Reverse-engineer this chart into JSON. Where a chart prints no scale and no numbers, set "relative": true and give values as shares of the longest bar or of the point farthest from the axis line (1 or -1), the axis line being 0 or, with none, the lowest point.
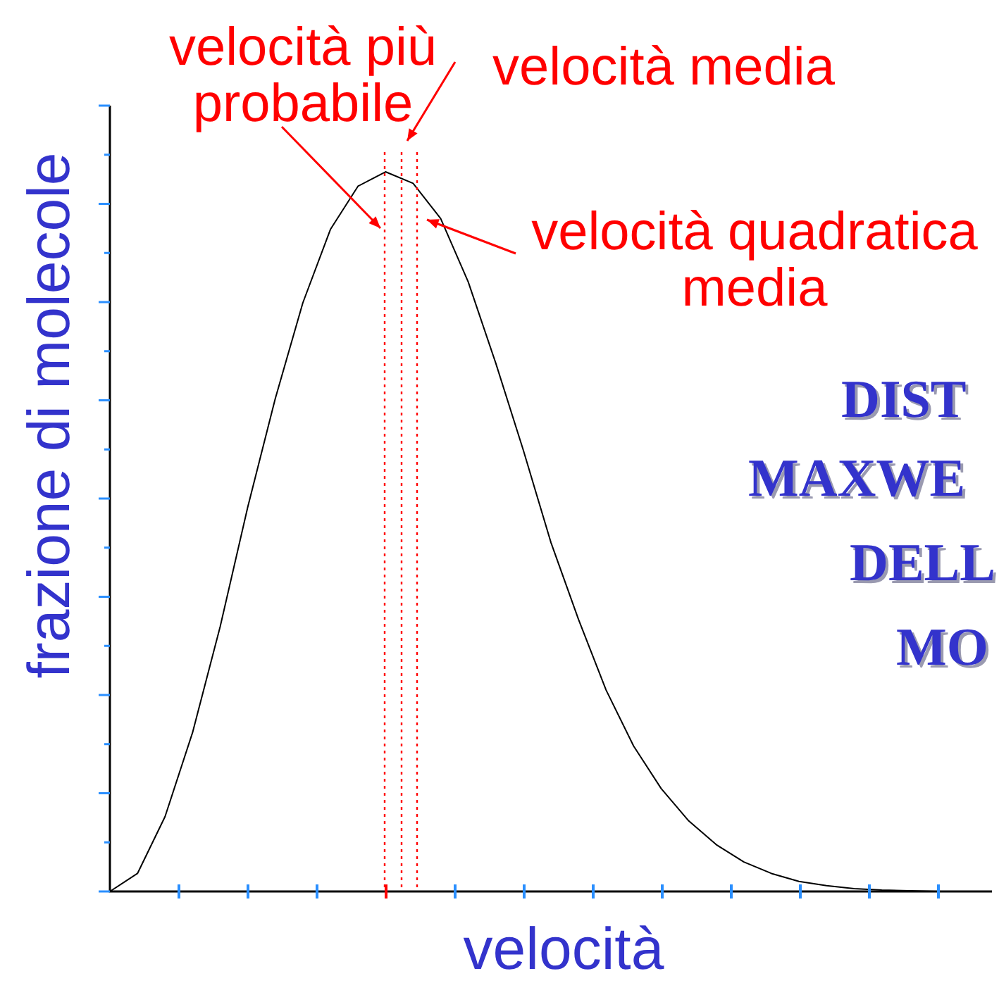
{
  "chart_data": {
    "type": "line",
    "relative": true,
    "xlabel": "velocità",
    "ylabel": "frazione di molecole",
    "categories": [
      null,
      null,
      null,
      null,
      null,
      null,
      null,
      null,
      null,
      null,
      null,
      null,
      null,
      null,
      null,
      null,
      null,
      null,
      null,
      null,
      null,
      null,
      null,
      null,
      null,
      null,
      null,
      null,
      null,
      null,
      null,
      null,
      null
    ],
    "series": [
      {
        "color": "#000000",
        "values": [
          0,
          0.025,
          0.104,
          0.221,
          0.368,
          0.534,
          0.685,
          0.818,
          0.92,
          0.98,
          1,
          0.984,
          0.935,
          0.847,
          0.734,
          0.613,
          0.485,
          0.378,
          0.28,
          0.202,
          0.143,
          0.098,
          0.065,
          0.041,
          0.025,
          0.014,
          0.008,
          0.004,
          0.002,
          0.001,
          0,
          0,
          0
        ]
      }
    ],
    "ref_lines": [
      {
        "axis": "x",
        "label": "velocità più probabile",
        "color": "#ff0000",
        "line_style": "dotted"
      },
      {
        "axis": "x",
        "label": "velocità media",
        "color": "#ff0000",
        "line_style": "dotted"
      },
      {
        "axis": "x",
        "label": "velocità quadratica media",
        "color": "#ff0000",
        "line_style": "dotted"
      }
    ],
    "annotations": [
      "DIST",
      "MAXWE",
      "DELL",
      "MO"
    ],
    "marker": "none",
    "line_style": "solid"
  }
}
